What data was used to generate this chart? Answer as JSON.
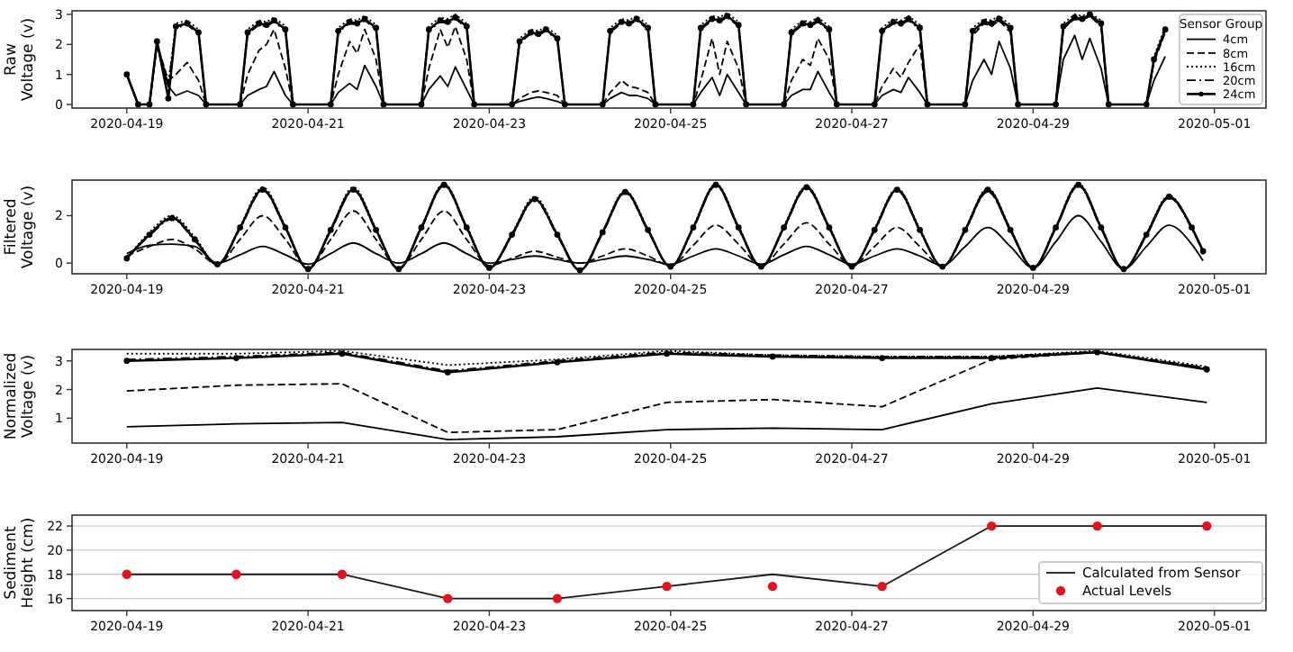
{
  "chart_data": [
    {
      "type": "line",
      "ylabel": "Raw\nVoltage (v)",
      "legend": "right",
      "legend_title": "Sensor Group",
      "xlim": [
        "2020-04-18T09:30",
        "2020-05-01T13:40"
      ],
      "xticks": [
        "2020-04-19",
        "2020-04-21",
        "2020-04-23",
        "2020-04-25",
        "2020-04-27",
        "2020-04-29",
        "2020-05-01"
      ],
      "ylim": [
        -0.12,
        3.12
      ],
      "yticks": [
        0,
        1,
        2,
        3
      ],
      "x": [
        "2020-04-19T00:00",
        "2020-04-19T03:00",
        "2020-04-19T06:00",
        "2020-04-19T08:00",
        "2020-04-19T11:00",
        "2020-04-19T13:00",
        "2020-04-19T16:00",
        "2020-04-19T19:00",
        "2020-04-19T21:00",
        "2020-04-20T06:00",
        "2020-04-20T08:00",
        "2020-04-20T11:00",
        "2020-04-20T13:00",
        "2020-04-20T15:00",
        "2020-04-20T18:00",
        "2020-04-20T20:00",
        "2020-04-21T06:00",
        "2020-04-21T08:00",
        "2020-04-21T11:00",
        "2020-04-21T13:00",
        "2020-04-21T15:00",
        "2020-04-21T18:00",
        "2020-04-21T20:00",
        "2020-04-22T06:00",
        "2020-04-22T08:00",
        "2020-04-22T11:00",
        "2020-04-22T13:00",
        "2020-04-22T15:00",
        "2020-04-22T18:00",
        "2020-04-22T20:00",
        "2020-04-23T06:00",
        "2020-04-23T08:00",
        "2020-04-23T11:00",
        "2020-04-23T13:00",
        "2020-04-23T15:00",
        "2020-04-23T18:00",
        "2020-04-23T20:00",
        "2020-04-24T06:00",
        "2020-04-24T08:00",
        "2020-04-24T11:00",
        "2020-04-24T13:00",
        "2020-04-24T15:00",
        "2020-04-24T18:00",
        "2020-04-24T20:00",
        "2020-04-25T06:00",
        "2020-04-25T08:00",
        "2020-04-25T11:00",
        "2020-04-25T13:00",
        "2020-04-25T15:00",
        "2020-04-25T18:00",
        "2020-04-25T20:00",
        "2020-04-26T06:00",
        "2020-04-26T08:00",
        "2020-04-26T11:00",
        "2020-04-26T13:00",
        "2020-04-26T15:00",
        "2020-04-26T18:00",
        "2020-04-26T20:00",
        "2020-04-27T06:00",
        "2020-04-27T08:00",
        "2020-04-27T11:00",
        "2020-04-27T13:00",
        "2020-04-27T15:00",
        "2020-04-27T18:00",
        "2020-04-27T20:00",
        "2020-04-28T06:00",
        "2020-04-28T08:00",
        "2020-04-28T11:00",
        "2020-04-28T13:00",
        "2020-04-28T15:00",
        "2020-04-28T18:00",
        "2020-04-28T20:00",
        "2020-04-29T06:00",
        "2020-04-29T08:00",
        "2020-04-29T11:00",
        "2020-04-29T13:00",
        "2020-04-29T15:00",
        "2020-04-29T18:00",
        "2020-04-29T20:00",
        "2020-04-30T06:00",
        "2020-04-30T08:00",
        "2020-04-30T11:00"
      ],
      "series": [
        {
          "name": "4cm",
          "color": "#000000",
          "line_style": "solid",
          "values": [
            1.0,
            0,
            0,
            2.0,
            0.6,
            0.3,
            0.45,
            0.3,
            0,
            0,
            0.3,
            0.5,
            0.6,
            1.1,
            0.3,
            0,
            0,
            0.4,
            0.7,
            0.5,
            1.3,
            0.6,
            0,
            0,
            0.5,
            0.95,
            0.6,
            1.25,
            0.5,
            0,
            0,
            0.1,
            0.2,
            0.25,
            0.2,
            0.1,
            0,
            0,
            0.2,
            0.4,
            0.3,
            0.3,
            0.2,
            0,
            0,
            0.4,
            0.9,
            0.3,
            1.0,
            0.4,
            0,
            0,
            0.3,
            0.5,
            0.5,
            1.1,
            0.4,
            0,
            0,
            0.3,
            0.5,
            0.4,
            0.9,
            0.4,
            0,
            0,
            0.8,
            1.5,
            1.0,
            2.1,
            1.2,
            0,
            0,
            1.5,
            2.3,
            1.5,
            2.2,
            1.2,
            0,
            0,
            0.8,
            1.6
          ]
        },
        {
          "name": "8cm",
          "color": "#000000",
          "line_style": "dashed",
          "values": [
            1.0,
            0,
            0,
            2.0,
            0.8,
            1.0,
            1.4,
            0.8,
            0,
            0,
            1.0,
            1.8,
            2.0,
            2.5,
            1.2,
            0,
            0,
            1.0,
            2.1,
            1.7,
            2.5,
            1.5,
            0,
            0,
            1.2,
            2.5,
            1.9,
            2.6,
            1.5,
            0,
            0,
            0.2,
            0.4,
            0.45,
            0.4,
            0.3,
            0,
            0,
            0.4,
            0.8,
            0.6,
            0.55,
            0.4,
            0,
            0,
            0.8,
            2.2,
            1.0,
            2.1,
            1.2,
            0,
            0,
            0.8,
            1.5,
            1.3,
            2.2,
            1.5,
            0,
            0,
            0.6,
            1.2,
            0.9,
            1.4,
            2.0,
            0,
            0,
            2.3,
            2.7,
            2.6,
            2.8,
            2.4,
            0,
            0,
            2.5,
            2.9,
            2.8,
            2.95,
            2.6,
            0,
            0,
            1.4,
            2.4
          ]
        },
        {
          "name": "16cm",
          "color": "#000000",
          "line_style": "dotted",
          "values": [
            1.0,
            0,
            0,
            2.1,
            0.7,
            2.7,
            2.8,
            2.5,
            0,
            0,
            2.5,
            2.8,
            2.75,
            2.9,
            2.6,
            0,
            0,
            2.55,
            2.85,
            2.8,
            2.95,
            2.65,
            0,
            0,
            2.6,
            2.9,
            2.85,
            3.0,
            2.7,
            0,
            0,
            2.2,
            2.5,
            2.45,
            2.6,
            2.3,
            0,
            0,
            2.55,
            2.85,
            2.8,
            2.95,
            2.65,
            0,
            0,
            2.65,
            2.95,
            2.9,
            3.05,
            2.75,
            0,
            0,
            2.5,
            2.8,
            2.75,
            2.9,
            2.6,
            0,
            0,
            2.55,
            2.85,
            2.8,
            2.95,
            2.65,
            0,
            0,
            2.55,
            2.85,
            2.8,
            2.95,
            2.65,
            0,
            0,
            2.7,
            3.0,
            2.95,
            3.05,
            2.8,
            0,
            0,
            1.6,
            2.6
          ]
        },
        {
          "name": "20cm",
          "color": "#000000",
          "line_style": "dashdot",
          "values": [
            1.0,
            0,
            0,
            2.05,
            0.65,
            2.55,
            2.65,
            2.35,
            0,
            0,
            2.35,
            2.65,
            2.6,
            2.75,
            2.45,
            0,
            0,
            2.4,
            2.7,
            2.65,
            2.8,
            2.5,
            0,
            0,
            2.45,
            2.75,
            2.7,
            2.85,
            2.55,
            0,
            0,
            2.05,
            2.35,
            2.3,
            2.45,
            2.15,
            0,
            0,
            2.4,
            2.7,
            2.65,
            2.8,
            2.5,
            0,
            0,
            2.5,
            2.8,
            2.75,
            2.9,
            2.6,
            0,
            0,
            2.35,
            2.65,
            2.6,
            2.75,
            2.45,
            0,
            0,
            2.4,
            2.7,
            2.65,
            2.8,
            2.5,
            0,
            0,
            2.4,
            2.7,
            2.65,
            2.8,
            2.5,
            0,
            0,
            2.55,
            2.85,
            2.8,
            2.95,
            2.65,
            0,
            0,
            1.45,
            2.45
          ]
        },
        {
          "name": "24cm",
          "color": "#000000",
          "line_style": "solid",
          "marker": "circle",
          "values": [
            1.0,
            0,
            0,
            2.1,
            0.2,
            2.6,
            2.7,
            2.4,
            0,
            0,
            2.4,
            2.7,
            2.65,
            2.8,
            2.5,
            0,
            0,
            2.45,
            2.75,
            2.7,
            2.85,
            2.55,
            0,
            0,
            2.5,
            2.8,
            2.75,
            2.9,
            2.6,
            0,
            0,
            2.1,
            2.4,
            2.35,
            2.5,
            2.2,
            0,
            0,
            2.45,
            2.75,
            2.7,
            2.85,
            2.55,
            0,
            0,
            2.55,
            2.85,
            2.8,
            2.95,
            2.65,
            0,
            0,
            2.4,
            2.7,
            2.65,
            2.8,
            2.5,
            0,
            0,
            2.45,
            2.75,
            2.7,
            2.85,
            2.55,
            0,
            0,
            2.45,
            2.75,
            2.7,
            2.85,
            2.55,
            0,
            0,
            2.6,
            2.9,
            2.85,
            3.0,
            2.7,
            0,
            0,
            1.5,
            2.5
          ]
        }
      ]
    },
    {
      "type": "line",
      "ylabel": "Filtered\nVoltage (v)",
      "xlim": [
        "2020-04-18T09:30",
        "2020-05-01T13:40"
      ],
      "xticks": [
        "2020-04-19",
        "2020-04-21",
        "2020-04-23",
        "2020-04-25",
        "2020-04-27",
        "2020-04-29",
        "2020-05-01"
      ],
      "ylim": [
        -0.45,
        3.5
      ],
      "yticks": [
        0,
        2
      ],
      "x": [
        "2020-04-19T00:00",
        "2020-04-19T06:00",
        "2020-04-19T12:00",
        "2020-04-19T18:00",
        "2020-04-20T00:00",
        "2020-04-20T06:00",
        "2020-04-20T12:00",
        "2020-04-20T18:00",
        "2020-04-21T00:00",
        "2020-04-21T06:00",
        "2020-04-21T12:00",
        "2020-04-21T18:00",
        "2020-04-22T00:00",
        "2020-04-22T06:00",
        "2020-04-22T12:00",
        "2020-04-22T18:00",
        "2020-04-23T00:00",
        "2020-04-23T06:00",
        "2020-04-23T12:00",
        "2020-04-23T18:00",
        "2020-04-24T00:00",
        "2020-04-24T06:00",
        "2020-04-24T12:00",
        "2020-04-24T18:00",
        "2020-04-25T00:00",
        "2020-04-25T06:00",
        "2020-04-25T12:00",
        "2020-04-25T18:00",
        "2020-04-26T00:00",
        "2020-04-26T06:00",
        "2020-04-26T12:00",
        "2020-04-26T18:00",
        "2020-04-27T00:00",
        "2020-04-27T06:00",
        "2020-04-27T12:00",
        "2020-04-27T18:00",
        "2020-04-28T00:00",
        "2020-04-28T06:00",
        "2020-04-28T12:00",
        "2020-04-28T18:00",
        "2020-04-29T00:00",
        "2020-04-29T06:00",
        "2020-04-29T12:00",
        "2020-04-29T18:00",
        "2020-04-30T00:00",
        "2020-04-30T06:00",
        "2020-04-30T12:00",
        "2020-04-30T18:00",
        "2020-04-30T21:00"
      ],
      "series": [
        {
          "color": "#000000",
          "line_style": "solid",
          "values": [
            0.4,
            0.75,
            0.8,
            0.7,
            0.0,
            0.35,
            0.7,
            0.35,
            -0.05,
            0.4,
            0.85,
            0.4,
            0.0,
            0.4,
            0.85,
            0.4,
            0.0,
            0.15,
            0.3,
            0.15,
            0.0,
            0.15,
            0.3,
            0.15,
            -0.05,
            0.3,
            0.6,
            0.3,
            -0.05,
            0.35,
            0.7,
            0.35,
            -0.05,
            0.3,
            0.6,
            0.3,
            -0.1,
            0.7,
            1.5,
            0.7,
            -0.2,
            0.9,
            2.0,
            0.9,
            -0.25,
            0.7,
            1.6,
            0.8,
            0.1
          ]
        },
        {
          "color": "#000000",
          "line_style": "dashed",
          "values": [
            0.3,
            0.7,
            1.0,
            0.6,
            -0.05,
            1.0,
            2.0,
            1.0,
            -0.2,
            1.0,
            2.2,
            1.0,
            -0.2,
            1.0,
            2.2,
            1.0,
            -0.1,
            0.2,
            0.5,
            0.25,
            0.0,
            0.3,
            0.6,
            0.3,
            -0.1,
            0.75,
            1.6,
            0.8,
            -0.1,
            0.8,
            1.7,
            0.8,
            -0.1,
            0.7,
            1.5,
            0.7,
            -0.15,
            1.4,
            3.0,
            1.4,
            -0.2,
            1.5,
            3.25,
            1.5,
            -0.25,
            1.2,
            2.75,
            1.5,
            0.5
          ]
        },
        {
          "color": "#000000",
          "line_style": "dotted",
          "values": [
            0.2,
            1.3,
            2.0,
            1.1,
            -0.05,
            1.55,
            3.2,
            1.55,
            -0.25,
            1.45,
            3.2,
            1.45,
            -0.25,
            1.55,
            3.35,
            1.55,
            -0.2,
            1.25,
            2.8,
            1.25,
            -0.3,
            1.35,
            3.05,
            1.45,
            -0.15,
            1.55,
            3.35,
            1.55,
            -0.15,
            1.55,
            3.25,
            1.55,
            -0.15,
            1.45,
            3.15,
            1.45,
            -0.15,
            1.45,
            3.15,
            1.45,
            -0.2,
            1.55,
            3.35,
            1.55,
            -0.25,
            1.25,
            2.85,
            1.5,
            0.5
          ]
        },
        {
          "color": "#000000",
          "line_style": "dashdot",
          "values": [
            0.2,
            1.15,
            1.85,
            0.95,
            -0.05,
            1.45,
            3.05,
            1.45,
            -0.25,
            1.35,
            3.05,
            1.35,
            -0.25,
            1.45,
            3.25,
            1.45,
            -0.2,
            1.15,
            2.65,
            1.15,
            -0.3,
            1.25,
            2.95,
            1.35,
            -0.15,
            1.45,
            3.25,
            1.45,
            -0.15,
            1.45,
            3.15,
            1.45,
            -0.15,
            1.35,
            3.05,
            1.35,
            -0.15,
            1.35,
            3.05,
            1.35,
            -0.2,
            1.45,
            3.25,
            1.45,
            -0.25,
            1.15,
            2.75,
            1.45,
            0.45
          ]
        },
        {
          "color": "#000000",
          "line_style": "solid",
          "marker": "circle",
          "values": [
            0.2,
            1.2,
            1.9,
            1.0,
            -0.05,
            1.5,
            3.1,
            1.5,
            -0.25,
            1.4,
            3.1,
            1.4,
            -0.25,
            1.5,
            3.3,
            1.5,
            -0.2,
            1.2,
            2.7,
            1.2,
            -0.3,
            1.3,
            3.0,
            1.4,
            -0.15,
            1.5,
            3.3,
            1.5,
            -0.15,
            1.5,
            3.2,
            1.5,
            -0.15,
            1.4,
            3.1,
            1.4,
            -0.15,
            1.4,
            3.1,
            1.4,
            -0.2,
            1.5,
            3.3,
            1.5,
            -0.25,
            1.2,
            2.8,
            1.5,
            0.5
          ]
        }
      ]
    },
    {
      "type": "line",
      "ylabel": "Normalized\nVoltage (v)",
      "xlim": [
        "2020-04-18T09:30",
        "2020-05-01T13:40"
      ],
      "xticks": [
        "2020-04-19",
        "2020-04-21",
        "2020-04-23",
        "2020-04-25",
        "2020-04-27",
        "2020-04-29",
        "2020-05-01"
      ],
      "ylim": [
        0.13,
        3.4
      ],
      "yticks": [
        1,
        2,
        3
      ],
      "x": [
        "2020-04-19T00:00",
        "2020-04-20T05:00",
        "2020-04-21T09:00",
        "2020-04-22T13:00",
        "2020-04-23T18:00",
        "2020-04-24T23:00",
        "2020-04-26T03:00",
        "2020-04-27T08:00",
        "2020-04-28T13:00",
        "2020-04-29T17:00",
        "2020-04-30T22:00"
      ],
      "series": [
        {
          "color": "#000000",
          "line_style": "solid",
          "values": [
            0.7,
            0.8,
            0.85,
            0.25,
            0.35,
            0.6,
            0.65,
            0.6,
            1.5,
            2.05,
            1.55
          ]
        },
        {
          "color": "#000000",
          "line_style": "dashed",
          "values": [
            1.95,
            2.15,
            2.2,
            0.5,
            0.6,
            1.55,
            1.65,
            1.4,
            3.05,
            3.3,
            2.75
          ]
        },
        {
          "color": "#000000",
          "line_style": "dotted",
          "values": [
            3.25,
            3.25,
            3.35,
            2.85,
            3.05,
            3.35,
            3.2,
            3.15,
            3.15,
            3.35,
            2.8
          ]
        },
        {
          "color": "#000000",
          "line_style": "dashdot",
          "values": [
            3.05,
            3.15,
            3.3,
            2.65,
            3.0,
            3.3,
            3.2,
            3.15,
            3.15,
            3.32,
            2.75
          ]
        },
        {
          "color": "#000000",
          "line_style": "solid",
          "marker": "circle",
          "values": [
            3.0,
            3.1,
            3.25,
            2.6,
            2.95,
            3.25,
            3.15,
            3.1,
            3.1,
            3.3,
            2.7
          ]
        }
      ]
    },
    {
      "type": "line",
      "ylabel": "Sediment\nHeight (cm)",
      "legend": "bottom right",
      "grid": "y",
      "xlim": [
        "2020-04-18T09:30",
        "2020-05-01T13:40"
      ],
      "xticks": [
        "2020-04-19",
        "2020-04-21",
        "2020-04-23",
        "2020-04-25",
        "2020-04-27",
        "2020-04-29",
        "2020-05-01"
      ],
      "ylim": [
        15,
        22.9
      ],
      "yticks": [
        16,
        18,
        20,
        22
      ],
      "x": [
        "2020-04-19T00:00",
        "2020-04-20T05:00",
        "2020-04-21T09:00",
        "2020-04-22T13:00",
        "2020-04-23T18:00",
        "2020-04-24T23:00",
        "2020-04-26T03:00",
        "2020-04-27T08:00",
        "2020-04-28T13:00",
        "2020-04-29T17:00",
        "2020-04-30T22:00"
      ],
      "series": [
        {
          "name": "Calculated from Sensor",
          "type": "line",
          "color": "#1a1a1a",
          "line_style": "solid",
          "values": [
            18,
            18,
            18,
            16,
            16,
            17,
            18,
            17,
            22,
            22,
            22
          ]
        },
        {
          "name": "Actual Levels",
          "type": "scatter",
          "color": "#e8101a",
          "marker": "circle",
          "values": [
            18,
            18,
            18,
            16,
            16,
            17,
            17,
            17,
            22,
            22,
            22
          ]
        }
      ]
    }
  ]
}
